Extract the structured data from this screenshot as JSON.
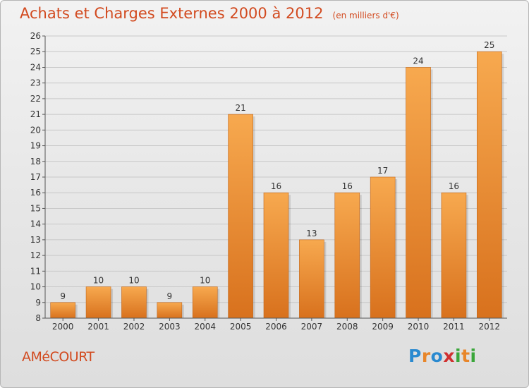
{
  "header": {
    "title": "Achats et Charges Externes 2000 à 2012",
    "unit": "(en milliers d'€)"
  },
  "footer": {
    "city": "AMéCOURT",
    "logo_text": "Proxiti"
  },
  "chart_data": {
    "type": "bar",
    "title": "Achats et Charges Externes 2000 à 2012",
    "subtitle": "(en milliers d'€)",
    "categories": [
      "2000",
      "2001",
      "2002",
      "2003",
      "2004",
      "2005",
      "2006",
      "2007",
      "2008",
      "2009",
      "2010",
      "2011",
      "2012"
    ],
    "values": [
      9,
      10,
      10,
      9,
      10,
      21,
      16,
      13,
      16,
      17,
      24,
      16,
      25
    ],
    "ylim": [
      8,
      26
    ],
    "yticks": [
      8,
      9,
      10,
      11,
      12,
      13,
      14,
      15,
      16,
      17,
      18,
      19,
      20,
      21,
      22,
      23,
      24,
      25,
      26
    ],
    "grid": true,
    "data_labels": true,
    "colors": {
      "bar_light": "#f7a94f",
      "bar_dark": "#d8711d",
      "title": "#d24a1f",
      "grid": "#c8c8c8"
    }
  }
}
